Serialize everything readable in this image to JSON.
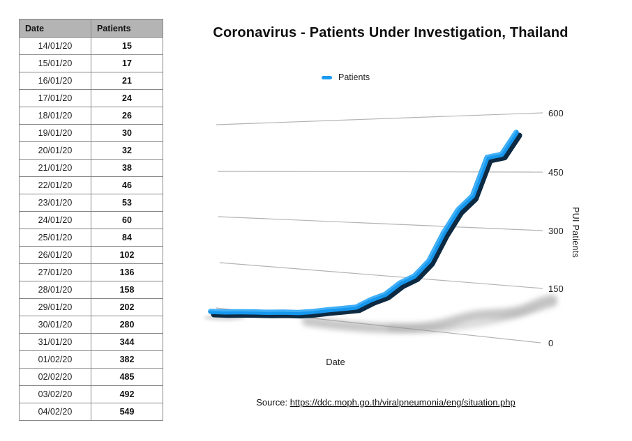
{
  "table": {
    "headers": [
      "Date",
      "Patients"
    ],
    "rows": [
      [
        "14/01/20",
        "15"
      ],
      [
        "15/01/20",
        "17"
      ],
      [
        "16/01/20",
        "21"
      ],
      [
        "17/01/20",
        "24"
      ],
      [
        "18/01/20",
        "26"
      ],
      [
        "19/01/20",
        "30"
      ],
      [
        "20/01/20",
        "32"
      ],
      [
        "21/01/20",
        "38"
      ],
      [
        "22/01/20",
        "46"
      ],
      [
        "23/01/20",
        "53"
      ],
      [
        "24/01/20",
        "60"
      ],
      [
        "25/01/20",
        "84"
      ],
      [
        "26/01/20",
        "102"
      ],
      [
        "27/01/20",
        "136"
      ],
      [
        "28/01/20",
        "158"
      ],
      [
        "29/01/20",
        "202"
      ],
      [
        "30/01/20",
        "280"
      ],
      [
        "31/01/20",
        "344"
      ],
      [
        "01/02/20",
        "382"
      ],
      [
        "02/02/20",
        "485"
      ],
      [
        "03/02/20",
        "492"
      ],
      [
        "04/02/20",
        "549"
      ]
    ]
  },
  "chart": {
    "title": "Coronavirus - Patients Under Investigation, Thailand",
    "legend_label": "Patients",
    "x_axis_label": "Date",
    "y_axis_label": "PUI Patients",
    "y_ticks": [
      "600",
      "450",
      "300",
      "150",
      "0"
    ]
  },
  "source": {
    "prefix": "Source: ",
    "url": "https://ddc.moph.go.th/viralpneumonia/eng/situation.php"
  },
  "colors": {
    "line": "#1697ee",
    "line_dark": "#0d2a42",
    "line_highlight": "#46b2f7",
    "gridline": "#b3b3b3",
    "shadow": "#8f8f8f",
    "header_bg": "#b4b4b4"
  },
  "chart_data": {
    "type": "line",
    "style": "3d-ribbon",
    "title": "Coronavirus - Patients Under Investigation, Thailand",
    "xlabel": "Date",
    "ylabel": "PUI Patients",
    "ylim": [
      0,
      600
    ],
    "y_tick_values": [
      0,
      150,
      300,
      450,
      600
    ],
    "grid": true,
    "legend_position": "top",
    "series": [
      {
        "name": "Patients",
        "x": [
          "14/01/20",
          "15/01/20",
          "16/01/20",
          "17/01/20",
          "18/01/20",
          "19/01/20",
          "20/01/20",
          "21/01/20",
          "22/01/20",
          "23/01/20",
          "24/01/20",
          "25/01/20",
          "26/01/20",
          "27/01/20",
          "28/01/20",
          "29/01/20",
          "30/01/20",
          "31/01/20",
          "01/02/20",
          "02/02/20",
          "03/02/20",
          "04/02/20"
        ],
        "values": [
          15,
          17,
          21,
          24,
          26,
          30,
          32,
          38,
          46,
          53,
          60,
          84,
          102,
          136,
          158,
          202,
          280,
          344,
          382,
          485,
          492,
          549
        ]
      }
    ]
  }
}
